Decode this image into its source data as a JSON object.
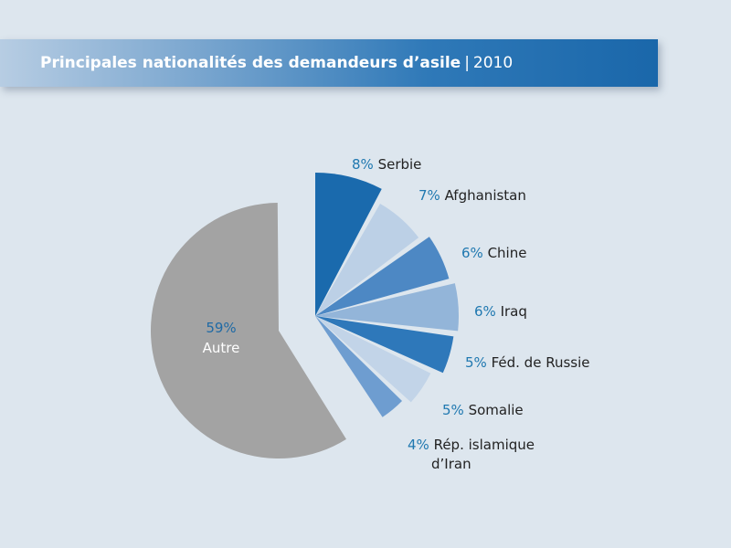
{
  "header": {
    "title": "Principales nationalités des demandeurs d’asile",
    "separator": "|",
    "year": "2010"
  },
  "chart_data": {
    "type": "pie",
    "title": "Principales nationalités des demandeurs d’asile | 2010",
    "slices": [
      {
        "name": "Serbie",
        "pct_label": "8%",
        "value": 8,
        "color": "#1a6aad"
      },
      {
        "name": "Afghanistan",
        "pct_label": "7%",
        "value": 7,
        "color": "#bcd0e6"
      },
      {
        "name": "Chine",
        "pct_label": "6%",
        "value": 6,
        "color": "#4d88c4"
      },
      {
        "name": "Iraq",
        "pct_label": "6%",
        "value": 6,
        "color": "#93b5d9"
      },
      {
        "name": "Féd. de Russie",
        "pct_label": "5%",
        "value": 5,
        "color": "#2e78ba"
      },
      {
        "name": "Somalie",
        "pct_label": "5%",
        "value": 5,
        "color": "#c2d4e8"
      },
      {
        "name": "Rép. islamique d’Iran",
        "name_lines": [
          "Rép. islamique",
          "d’Iran"
        ],
        "pct_label": "4%",
        "value": 4,
        "color": "#6e9dd0"
      },
      {
        "name": "Autre",
        "pct_label": "59%",
        "value": 59,
        "color": "#a3a3a3"
      }
    ]
  }
}
